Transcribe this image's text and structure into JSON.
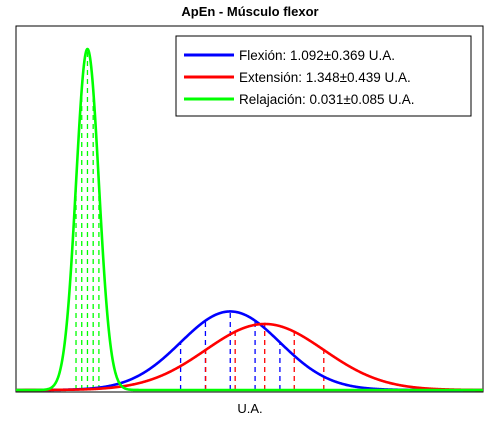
{
  "chart_data": {
    "type": "line",
    "title": "ApEn - Músculo flexor",
    "xlabel": "U.A.",
    "ylabel": "",
    "xlim": [
      -0.5,
      2.97
    ],
    "grid": false,
    "legend_position": "top-right",
    "series": [
      {
        "name": "Flexión: 1.092±0.369 U.A.",
        "distribution": "normal",
        "mean": 1.092,
        "std": 0.369,
        "color": "#0000ff",
        "dashed_markers_sigma": [
          -1,
          -0.5,
          0,
          0.5,
          1
        ]
      },
      {
        "name": "Extensión: 1.348±0.439 U.A.",
        "distribution": "normal",
        "mean": 1.348,
        "std": 0.439,
        "color": "#ff0000",
        "dashed_markers_sigma": [
          -1,
          -0.5,
          0,
          0.5,
          1
        ]
      },
      {
        "name": "Relajación: 0.031±0.085 U.A.",
        "distribution": "normal",
        "mean": 0.031,
        "std": 0.085,
        "color": "#00ff00",
        "dashed_markers_sigma": [
          -1,
          -0.5,
          0,
          0.5,
          1
        ]
      }
    ]
  }
}
